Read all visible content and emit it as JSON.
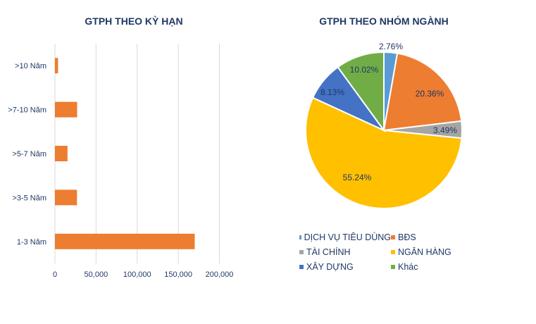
{
  "chart_data": [
    {
      "type": "bar",
      "orientation": "horizontal",
      "title": "GTPH THEO KỲ HẠN",
      "categories": [
        ">10 Năm",
        ">7-10 Năm",
        ">5-7 Năm",
        ">3-5 Năm",
        "1-3 Năm"
      ],
      "values": [
        3800,
        27000,
        15300,
        26800,
        170000
      ],
      "xticks": [
        "0",
        "50,000",
        "100,000",
        "150,000",
        "200,000"
      ],
      "xlim": [
        0,
        200000
      ],
      "grid": true,
      "color": "#ed7d31"
    },
    {
      "type": "pie",
      "title": "GTPH THEO NHÓM NGÀNH",
      "slices": [
        {
          "label": "DỊCH VỤ TIÊU DÙNG",
          "value": 2.76,
          "text": "2.76%",
          "color": "#5b9bd5"
        },
        {
          "label": "BĐS",
          "value": 20.36,
          "text": "20.36%",
          "color": "#ed7d31"
        },
        {
          "label": "TÀI CHÍNH",
          "value": 3.49,
          "text": "3.49%",
          "color": "#a5a5a5"
        },
        {
          "label": "NGÂN HÀNG",
          "value": 55.24,
          "text": "55.24%",
          "color": "#ffc000"
        },
        {
          "label": "XÂY DỰNG",
          "value": 8.13,
          "text": "8.13%",
          "color": "#4472c4"
        },
        {
          "label": "Khác",
          "value": 10.02,
          "text": "10.02%",
          "color": "#70ad47"
        }
      ],
      "legend_position": "bottom"
    }
  ]
}
